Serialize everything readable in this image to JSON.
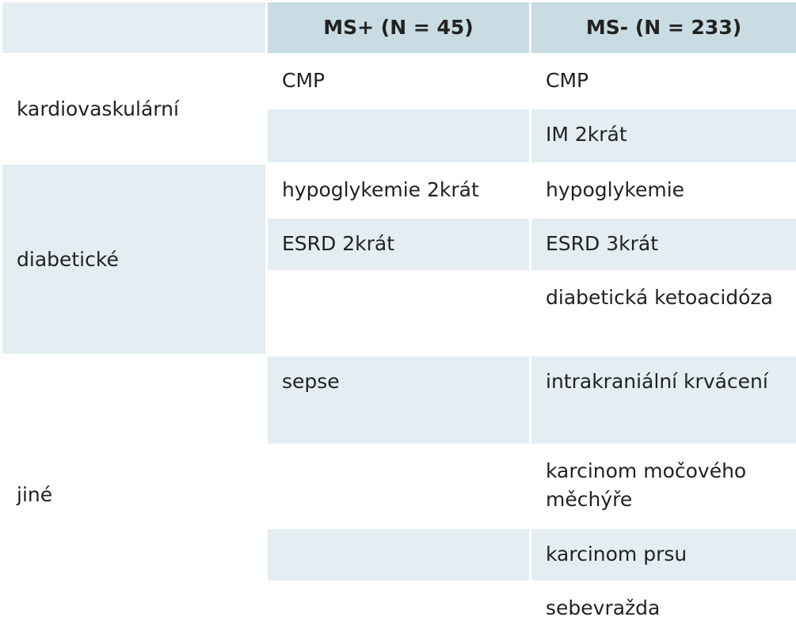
{
  "table": {
    "columns": [
      "MS+ (N = 45)",
      "MS- (N = 233)"
    ],
    "groups": [
      {
        "label": "kardiovaskulární",
        "rows": [
          [
            "CMP",
            "CMP"
          ],
          [
            null,
            "IM 2krát"
          ]
        ]
      },
      {
        "label": "diabetické",
        "rows": [
          [
            "hypoglykemie 2krát",
            "hypoglykemie"
          ],
          [
            "ESRD 2krát",
            "ESRD 3krát"
          ],
          [
            null,
            "diabetická ketoacidóza"
          ]
        ]
      },
      {
        "label": "jiné",
        "rows": [
          [
            "sepse",
            "intrakraniální krvácení"
          ],
          [
            null,
            "karcinom močového měchýře"
          ],
          [
            null,
            "karcinom prsu"
          ],
          [
            null,
            "sebevražda"
          ]
        ]
      }
    ]
  }
}
